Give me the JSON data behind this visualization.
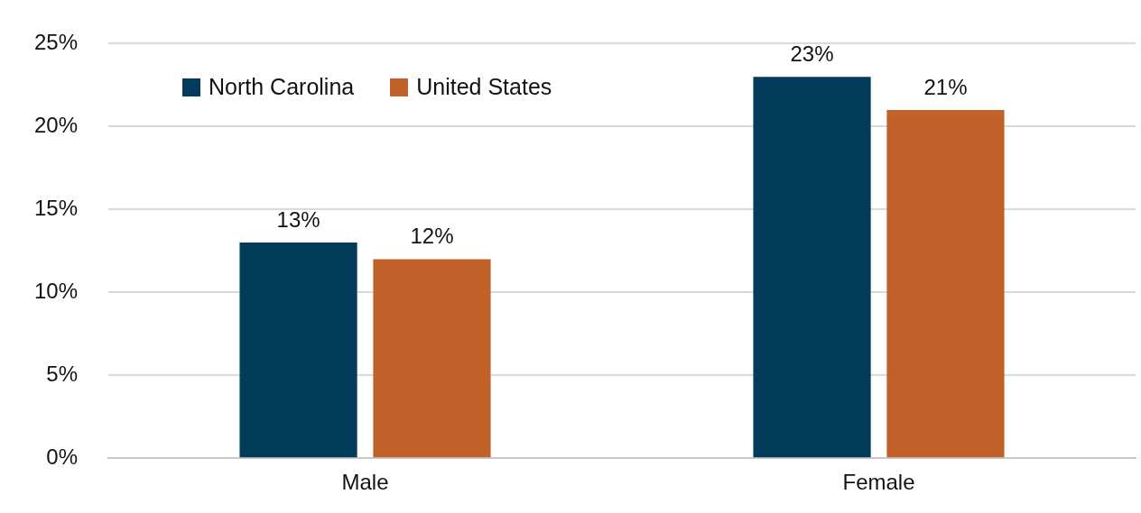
{
  "chart_data": {
    "type": "bar",
    "categories": [
      "Male",
      "Female"
    ],
    "series": [
      {
        "name": "North Carolina",
        "color": "#033c5a",
        "values": [
          13,
          23
        ],
        "value_labels": [
          "13%",
          "23%"
        ]
      },
      {
        "name": "United States",
        "color": "#c0622a",
        "values": [
          12,
          21
        ],
        "value_labels": [
          "12%",
          "21%"
        ]
      }
    ],
    "ylim": [
      0,
      25
    ],
    "yticks": [
      {
        "value": 0,
        "label": "0%"
      },
      {
        "value": 5,
        "label": "5%"
      },
      {
        "value": 10,
        "label": "10%"
      },
      {
        "value": 15,
        "label": "15%"
      },
      {
        "value": 20,
        "label": "20%"
      },
      {
        "value": 25,
        "label": "25%"
      }
    ],
    "grid": "y",
    "legend": "top left"
  }
}
